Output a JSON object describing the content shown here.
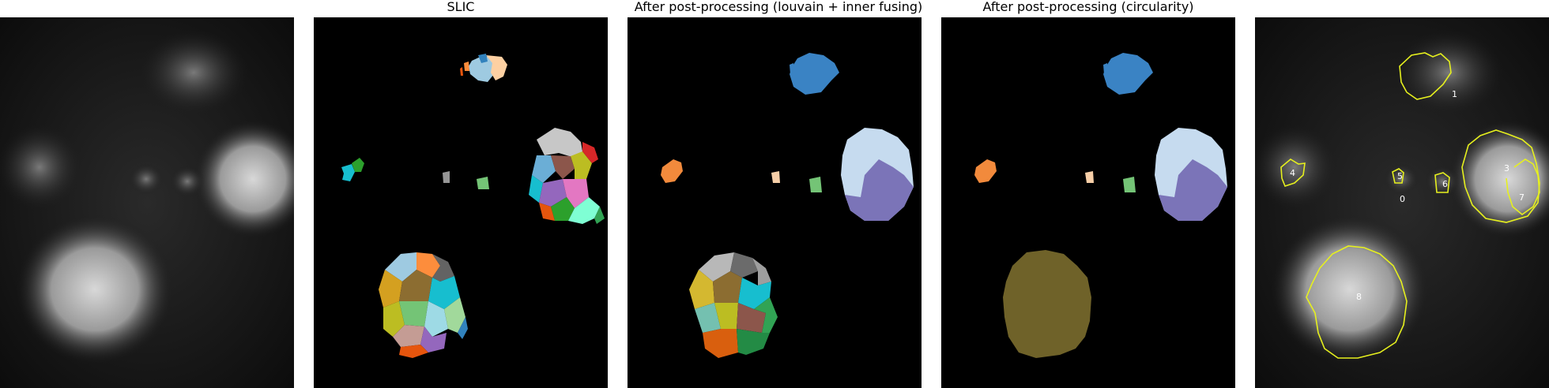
{
  "panels": [
    {
      "title": ""
    },
    {
      "title": "SLIC"
    },
    {
      "title": "After post-processing (louvain + inner fusing)"
    },
    {
      "title": "After post-processing (circularity)"
    },
    {
      "title": ""
    }
  ],
  "region_labels": [
    "1",
    "4",
    "5",
    "6",
    "3",
    "7",
    "0",
    "8"
  ],
  "colors": {
    "background": "#000000",
    "contour": "#e6f01e",
    "label_text": "#ffffff",
    "region_blue": "#3a83c4",
    "region_orange": "#f28a3c",
    "region_peach": "#f7cfa8",
    "region_green": "#74c476",
    "region_lightblue": "#c6dbef",
    "region_purple": "#7b74b8",
    "region_olive": "#6f6229"
  }
}
